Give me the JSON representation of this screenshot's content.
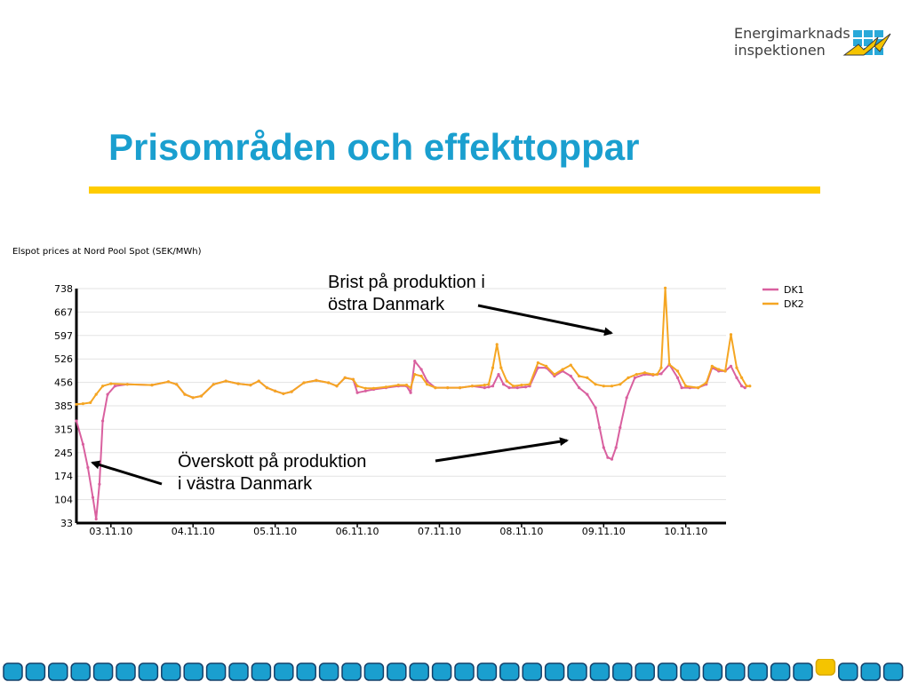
{
  "logo": {
    "line1": "Energimarknads",
    "line2": "inspektionen",
    "icon": "grid-lightning-icon"
  },
  "slide": {
    "title": "Prisområden och effekttoppar"
  },
  "annotations": {
    "top_line1": "Brist på produktion i",
    "top_line2": "östra Danmark",
    "bottom_line1": "Överskott på produktion",
    "bottom_line2": "i västra Danmark"
  },
  "chart_data": {
    "type": "line",
    "title": "Elspot prices at Nord Pool Spot (SEK/MWh)",
    "ylim": [
      33,
      738
    ],
    "y_ticks": [
      "738",
      "667",
      "597",
      "526",
      "456",
      "385",
      "315",
      "245",
      "174",
      "104",
      "33"
    ],
    "categories": [
      "03.11.10",
      "04.11.10",
      "05.11.10",
      "06.11.10",
      "07.11.10",
      "08.11.10",
      "09.11.10",
      "10.11.10"
    ],
    "x_range_days": [
      2.58,
      10.49
    ],
    "legend": "top-right",
    "grid": "horizontal",
    "series": [
      {
        "name": "DK1",
        "color": "#d9609f",
        "points": [
          [
            2.58,
            340
          ],
          [
            2.66,
            270
          ],
          [
            2.72,
            200
          ],
          [
            2.78,
            110
          ],
          [
            2.82,
            45
          ],
          [
            2.86,
            150
          ],
          [
            2.9,
            340
          ],
          [
            2.96,
            420
          ],
          [
            3.05,
            445
          ],
          [
            3.2,
            450
          ],
          [
            3.5,
            448
          ],
          [
            3.7,
            458
          ],
          [
            3.8,
            450
          ],
          [
            3.9,
            420
          ],
          [
            4.0,
            410
          ],
          [
            4.1,
            415
          ],
          [
            4.25,
            450
          ],
          [
            4.4,
            460
          ],
          [
            4.55,
            452
          ],
          [
            4.7,
            448
          ],
          [
            4.8,
            460
          ],
          [
            4.9,
            440
          ],
          [
            5.0,
            430
          ],
          [
            5.1,
            422
          ],
          [
            5.2,
            428
          ],
          [
            5.35,
            455
          ],
          [
            5.5,
            462
          ],
          [
            5.65,
            455
          ],
          [
            5.75,
            445
          ],
          [
            5.85,
            470
          ],
          [
            5.95,
            465
          ],
          [
            6.0,
            425
          ],
          [
            6.1,
            430
          ],
          [
            6.2,
            435
          ],
          [
            6.35,
            440
          ],
          [
            6.5,
            445
          ],
          [
            6.6,
            445
          ],
          [
            6.65,
            425
          ],
          [
            6.7,
            520
          ],
          [
            6.78,
            495
          ],
          [
            6.85,
            460
          ],
          [
            6.95,
            440
          ],
          [
            7.1,
            440
          ],
          [
            7.25,
            440
          ],
          [
            7.4,
            445
          ],
          [
            7.55,
            440
          ],
          [
            7.6,
            442
          ],
          [
            7.65,
            445
          ],
          [
            7.72,
            480
          ],
          [
            7.78,
            450
          ],
          [
            7.85,
            440
          ],
          [
            7.95,
            440
          ],
          [
            8.05,
            442
          ],
          [
            8.1,
            445
          ],
          [
            8.2,
            500
          ],
          [
            8.3,
            500
          ],
          [
            8.4,
            475
          ],
          [
            8.5,
            490
          ],
          [
            8.6,
            475
          ],
          [
            8.7,
            440
          ],
          [
            8.8,
            420
          ],
          [
            8.9,
            380
          ],
          [
            8.95,
            320
          ],
          [
            9.0,
            260
          ],
          [
            9.05,
            230
          ],
          [
            9.1,
            225
          ],
          [
            9.15,
            260
          ],
          [
            9.2,
            320
          ],
          [
            9.28,
            410
          ],
          [
            9.38,
            470
          ],
          [
            9.5,
            480
          ],
          [
            9.6,
            478
          ],
          [
            9.7,
            482
          ],
          [
            9.8,
            510
          ],
          [
            9.9,
            470
          ],
          [
            9.95,
            440
          ],
          [
            10.05,
            440
          ],
          [
            10.15,
            440
          ],
          [
            10.25,
            450
          ],
          [
            10.32,
            500
          ],
          [
            10.4,
            490
          ],
          [
            10.48,
            490
          ],
          [
            10.55,
            505
          ],
          [
            10.62,
            470
          ],
          [
            10.68,
            445
          ],
          [
            10.72,
            440
          ]
        ]
      },
      {
        "name": "DK2",
        "color": "#f5a623",
        "points": [
          [
            2.58,
            390
          ],
          [
            2.66,
            392
          ],
          [
            2.75,
            395
          ],
          [
            2.82,
            420
          ],
          [
            2.9,
            445
          ],
          [
            3.0,
            452
          ],
          [
            3.2,
            450
          ],
          [
            3.5,
            448
          ],
          [
            3.7,
            458
          ],
          [
            3.8,
            450
          ],
          [
            3.9,
            420
          ],
          [
            4.0,
            410
          ],
          [
            4.1,
            415
          ],
          [
            4.25,
            450
          ],
          [
            4.4,
            460
          ],
          [
            4.55,
            452
          ],
          [
            4.7,
            448
          ],
          [
            4.8,
            460
          ],
          [
            4.9,
            440
          ],
          [
            5.0,
            430
          ],
          [
            5.1,
            422
          ],
          [
            5.2,
            428
          ],
          [
            5.35,
            455
          ],
          [
            5.5,
            462
          ],
          [
            5.65,
            455
          ],
          [
            5.75,
            445
          ],
          [
            5.85,
            470
          ],
          [
            5.95,
            465
          ],
          [
            6.0,
            445
          ],
          [
            6.1,
            438
          ],
          [
            6.2,
            438
          ],
          [
            6.35,
            442
          ],
          [
            6.5,
            448
          ],
          [
            6.6,
            448
          ],
          [
            6.65,
            440
          ],
          [
            6.7,
            480
          ],
          [
            6.78,
            475
          ],
          [
            6.85,
            450
          ],
          [
            6.95,
            440
          ],
          [
            7.1,
            440
          ],
          [
            7.25,
            440
          ],
          [
            7.4,
            445
          ],
          [
            7.55,
            448
          ],
          [
            7.6,
            450
          ],
          [
            7.65,
            500
          ],
          [
            7.7,
            570
          ],
          [
            7.75,
            500
          ],
          [
            7.82,
            460
          ],
          [
            7.9,
            445
          ],
          [
            8.0,
            448
          ],
          [
            8.1,
            450
          ],
          [
            8.2,
            515
          ],
          [
            8.3,
            505
          ],
          [
            8.4,
            480
          ],
          [
            8.5,
            495
          ],
          [
            8.6,
            508
          ],
          [
            8.7,
            475
          ],
          [
            8.8,
            470
          ],
          [
            8.9,
            450
          ],
          [
            9.0,
            445
          ],
          [
            9.1,
            445
          ],
          [
            9.2,
            450
          ],
          [
            9.3,
            470
          ],
          [
            9.4,
            480
          ],
          [
            9.5,
            485
          ],
          [
            9.6,
            480
          ],
          [
            9.65,
            480
          ],
          [
            9.7,
            500
          ],
          [
            9.75,
            740
          ],
          [
            9.8,
            510
          ],
          [
            9.9,
            490
          ],
          [
            10.0,
            445
          ],
          [
            10.15,
            440
          ],
          [
            10.25,
            455
          ],
          [
            10.32,
            505
          ],
          [
            10.4,
            495
          ],
          [
            10.48,
            490
          ],
          [
            10.55,
            600
          ],
          [
            10.62,
            500
          ],
          [
            10.68,
            470
          ],
          [
            10.74,
            445
          ],
          [
            10.78,
            445
          ]
        ]
      }
    ]
  }
}
